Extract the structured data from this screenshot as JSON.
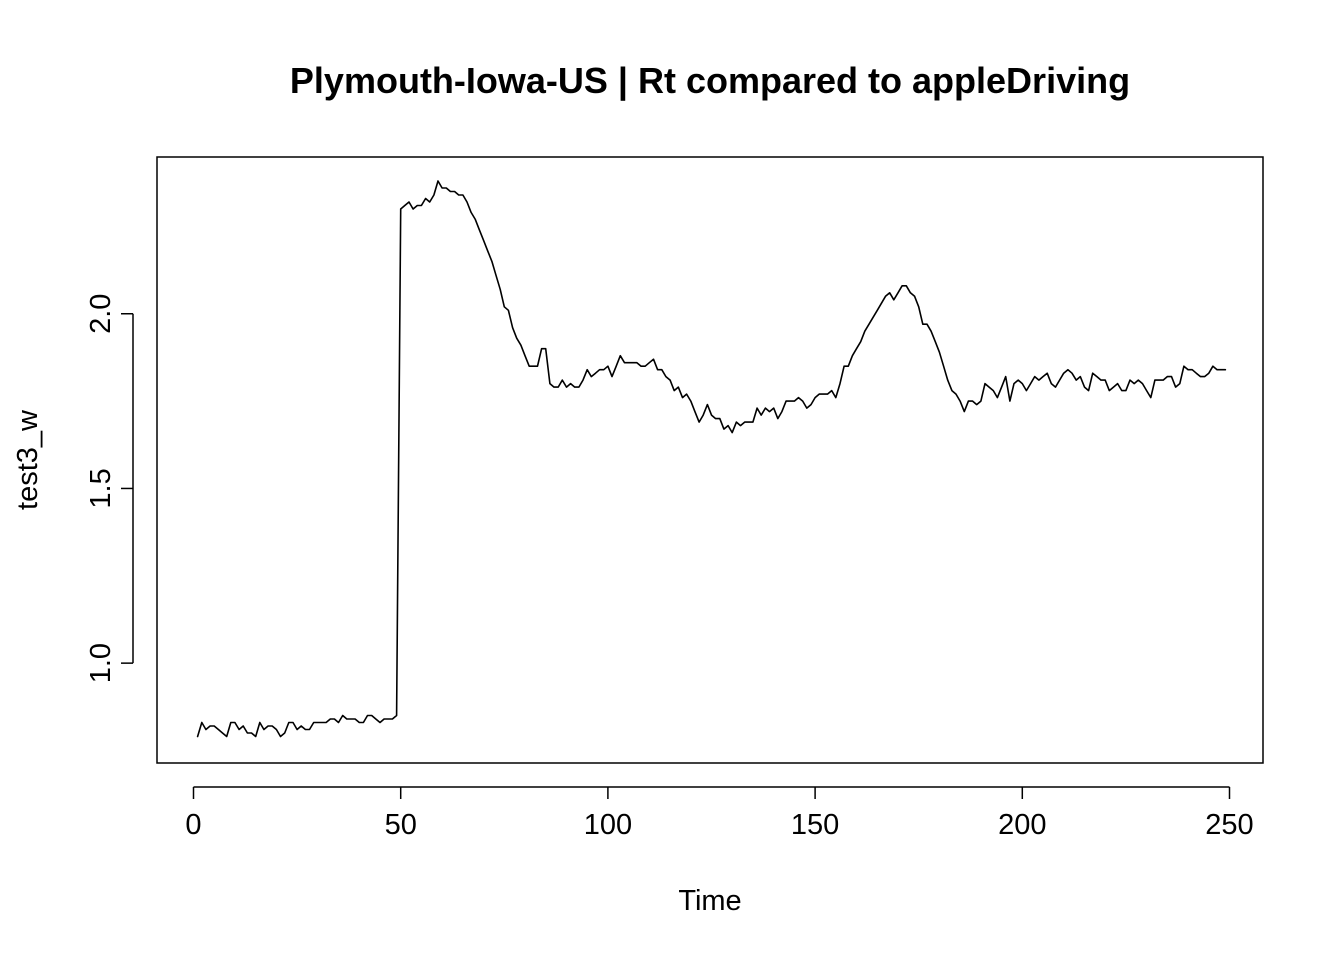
{
  "chart_data": {
    "type": "line",
    "title": "Plymouth-Iowa-US | Rt compared to appleDriving",
    "xlabel": "Time",
    "ylabel": "test3_w",
    "xlim": [
      0,
      250
    ],
    "ylim": [
      0.78,
      2.38
    ],
    "x_ticks": [
      "0",
      "50",
      "100",
      "150",
      "200",
      "250"
    ],
    "y_ticks": [
      "1.0",
      "1.5",
      "2.0"
    ],
    "grid": false,
    "line_color": "#000000",
    "series": [
      {
        "x": [
          1,
          2,
          3,
          4,
          5,
          6,
          7,
          8,
          9,
          10,
          11,
          12,
          13,
          14,
          15,
          16,
          17,
          18,
          19,
          20,
          21,
          22,
          23,
          24,
          25,
          26,
          27,
          28,
          29,
          30,
          31,
          32,
          33,
          34,
          35,
          36,
          37,
          38,
          39,
          40,
          41,
          42,
          43,
          44,
          45,
          46,
          47,
          48,
          49,
          50,
          51,
          52,
          53,
          54,
          55,
          56,
          57,
          58,
          59,
          60,
          61,
          62,
          63,
          64,
          65,
          66,
          67,
          68,
          69,
          70,
          71,
          72,
          73,
          74,
          75,
          76,
          77,
          78,
          79,
          80,
          81,
          82,
          83,
          84,
          85,
          86,
          87,
          88,
          89,
          90,
          91,
          92,
          93,
          94,
          95,
          96,
          97,
          98,
          99,
          100,
          101,
          102,
          103,
          104,
          105,
          106,
          107,
          108,
          109,
          110,
          111,
          112,
          113,
          114,
          115,
          116,
          117,
          118,
          119,
          120,
          121,
          122,
          123,
          124,
          125,
          126,
          127,
          128,
          129,
          130,
          131,
          132,
          133,
          134,
          135,
          136,
          137,
          138,
          139,
          140,
          141,
          142,
          143,
          144,
          145,
          146,
          147,
          148,
          149,
          150,
          151,
          152,
          153,
          154,
          155,
          156,
          157,
          158,
          159,
          160,
          161,
          162,
          163,
          164,
          165,
          166,
          167,
          168,
          169,
          170,
          171,
          172,
          173,
          174,
          175,
          176,
          177,
          178,
          179,
          180,
          181,
          182,
          183,
          184,
          185,
          186,
          187,
          188,
          189,
          190,
          191,
          192,
          193,
          194,
          195,
          196,
          197,
          198,
          199,
          200,
          201,
          202,
          203,
          204,
          205,
          206,
          207,
          208,
          209,
          210,
          211,
          212,
          213,
          214,
          215,
          216,
          217,
          218,
          219,
          220,
          221,
          222,
          223,
          224,
          225,
          226,
          227,
          228,
          229,
          230,
          231,
          232,
          233,
          234,
          235,
          236,
          237,
          238,
          239,
          240,
          241,
          242,
          243,
          244,
          245,
          246,
          247,
          248,
          249
        ],
        "values": [
          0.79,
          0.83,
          0.81,
          0.82,
          0.82,
          0.81,
          0.8,
          0.79,
          0.83,
          0.83,
          0.81,
          0.82,
          0.8,
          0.8,
          0.79,
          0.83,
          0.81,
          0.82,
          0.82,
          0.81,
          0.79,
          0.8,
          0.83,
          0.83,
          0.81,
          0.82,
          0.81,
          0.81,
          0.83,
          0.83,
          0.83,
          0.83,
          0.84,
          0.84,
          0.83,
          0.85,
          0.84,
          0.84,
          0.84,
          0.83,
          0.83,
          0.85,
          0.85,
          0.84,
          0.83,
          0.84,
          0.84,
          0.84,
          0.85,
          2.3,
          2.31,
          2.32,
          2.3,
          2.31,
          2.31,
          2.33,
          2.32,
          2.34,
          2.38,
          2.36,
          2.36,
          2.35,
          2.35,
          2.34,
          2.34,
          2.32,
          2.29,
          2.27,
          2.24,
          2.21,
          2.18,
          2.15,
          2.11,
          2.07,
          2.02,
          2.01,
          1.96,
          1.93,
          1.91,
          1.88,
          1.85,
          1.85,
          1.85,
          1.9,
          1.9,
          1.8,
          1.79,
          1.79,
          1.81,
          1.79,
          1.8,
          1.79,
          1.79,
          1.81,
          1.84,
          1.82,
          1.83,
          1.84,
          1.84,
          1.85,
          1.82,
          1.85,
          1.88,
          1.86,
          1.86,
          1.86,
          1.86,
          1.85,
          1.85,
          1.86,
          1.87,
          1.84,
          1.84,
          1.82,
          1.81,
          1.78,
          1.79,
          1.76,
          1.77,
          1.75,
          1.72,
          1.69,
          1.71,
          1.74,
          1.71,
          1.7,
          1.7,
          1.67,
          1.68,
          1.66,
          1.69,
          1.68,
          1.69,
          1.69,
          1.69,
          1.73,
          1.71,
          1.73,
          1.72,
          1.73,
          1.7,
          1.72,
          1.75,
          1.75,
          1.75,
          1.76,
          1.75,
          1.73,
          1.74,
          1.76,
          1.77,
          1.77,
          1.77,
          1.78,
          1.76,
          1.8,
          1.85,
          1.85,
          1.88,
          1.9,
          1.92,
          1.95,
          1.97,
          1.99,
          2.01,
          2.03,
          2.05,
          2.06,
          2.04,
          2.06,
          2.08,
          2.08,
          2.06,
          2.05,
          2.02,
          1.97,
          1.97,
          1.95,
          1.92,
          1.89,
          1.85,
          1.81,
          1.78,
          1.77,
          1.75,
          1.72,
          1.75,
          1.75,
          1.74,
          1.75,
          1.8,
          1.79,
          1.78,
          1.76,
          1.79,
          1.82,
          1.75,
          1.8,
          1.81,
          1.8,
          1.78,
          1.8,
          1.82,
          1.81,
          1.82,
          1.83,
          1.8,
          1.79,
          1.81,
          1.83,
          1.84,
          1.83,
          1.81,
          1.82,
          1.79,
          1.78,
          1.83,
          1.82,
          1.81,
          1.81,
          1.78,
          1.79,
          1.8,
          1.78,
          1.78,
          1.81,
          1.8,
          1.81,
          1.8,
          1.78,
          1.76,
          1.81,
          1.81,
          1.81,
          1.82,
          1.82,
          1.79,
          1.8,
          1.85,
          1.84,
          1.84,
          1.83,
          1.82,
          1.82,
          1.83,
          1.85,
          1.84,
          1.84,
          1.84
        ]
      }
    ]
  }
}
